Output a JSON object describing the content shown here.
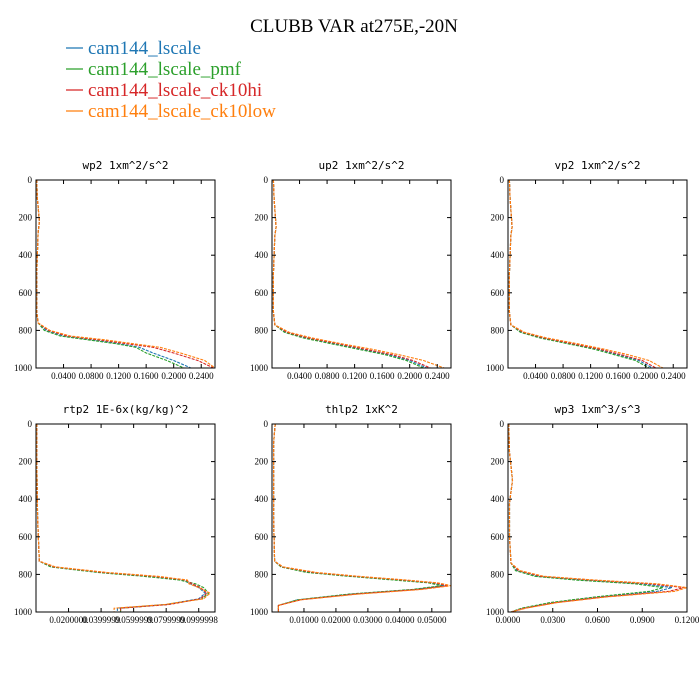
{
  "figure": {
    "title": "CLUBB VAR at275E,-20N"
  },
  "legend": [
    {
      "name": "cam144_lscale",
      "color": "#1f77b4"
    },
    {
      "name": "cam144_lscale_pmf",
      "color": "#2ca02c"
    },
    {
      "name": "cam144_lscale_ck10hi",
      "color": "#d62728"
    },
    {
      "name": "cam144_lscale_ck10low",
      "color": "#ff7f0e"
    }
  ],
  "chart_data": [
    {
      "type": "line",
      "title": "wp2  1xm^2/s^2",
      "xlim": [
        0,
        0.26
      ],
      "ylim": [
        1000,
        0
      ],
      "x_ticks": [
        0.04,
        0.08,
        0.12,
        0.16,
        0.2,
        0.24
      ],
      "x_tick_labels": [
        "0.0400",
        "0.0800",
        "0.1200",
        "0.1600",
        "0.2000",
        "0.2400"
      ],
      "y_ticks": [
        0,
        200,
        400,
        600,
        800,
        1000
      ],
      "y_tick_labels": [
        "0",
        "200",
        "400",
        "600",
        "800",
        "1000"
      ],
      "series": [
        {
          "name": "cam144_lscale",
          "x": [
            0.001,
            0.002,
            0.005,
            0.003,
            0.001,
            0.001,
            0.003,
            0.015,
            0.04,
            0.08,
            0.12,
            0.15,
            0.17,
            0.2,
            0.225
          ],
          "y": [
            0,
            100,
            220,
            280,
            500,
            700,
            760,
            800,
            830,
            850,
            870,
            890,
            920,
            960,
            1000
          ]
        },
        {
          "name": "cam144_lscale_pmf",
          "x": [
            0.001,
            0.002,
            0.005,
            0.003,
            0.001,
            0.001,
            0.003,
            0.012,
            0.035,
            0.075,
            0.115,
            0.145,
            0.16,
            0.19,
            0.215
          ],
          "y": [
            0,
            100,
            220,
            280,
            500,
            700,
            760,
            800,
            830,
            850,
            870,
            890,
            920,
            960,
            1000
          ]
        },
        {
          "name": "cam144_lscale_ck10hi",
          "x": [
            0.001,
            0.002,
            0.005,
            0.003,
            0.001,
            0.001,
            0.003,
            0.018,
            0.045,
            0.09,
            0.13,
            0.17,
            0.2,
            0.235,
            0.258
          ],
          "y": [
            0,
            100,
            220,
            280,
            500,
            700,
            760,
            800,
            830,
            850,
            870,
            890,
            920,
            960,
            1000
          ]
        },
        {
          "name": "cam144_lscale_ck10low",
          "x": [
            0.001,
            0.002,
            0.005,
            0.003,
            0.001,
            0.001,
            0.003,
            0.02,
            0.05,
            0.1,
            0.14,
            0.18,
            0.21,
            0.245,
            0.26
          ],
          "y": [
            0,
            100,
            220,
            280,
            500,
            700,
            760,
            800,
            830,
            850,
            870,
            890,
            920,
            960,
            1000
          ]
        }
      ]
    },
    {
      "type": "line",
      "title": "up2  1xm^2/s^2",
      "xlim": [
        0,
        0.26
      ],
      "ylim": [
        1000,
        0
      ],
      "x_ticks": [
        0.04,
        0.08,
        0.12,
        0.16,
        0.2,
        0.24
      ],
      "x_tick_labels": [
        "0.0400",
        "0.0800",
        "0.1200",
        "0.1600",
        "0.2000",
        "0.2400"
      ],
      "y_ticks": [
        0,
        200,
        400,
        600,
        800,
        1000
      ],
      "y_tick_labels": [
        "0",
        "200",
        "400",
        "600",
        "800",
        "1000"
      ],
      "series": [
        {
          "name": "cam144_lscale",
          "x": [
            0.002,
            0.003,
            0.006,
            0.004,
            0.002,
            0.002,
            0.004,
            0.02,
            0.05,
            0.09,
            0.13,
            0.17,
            0.2,
            0.225
          ],
          "y": [
            0,
            100,
            250,
            300,
            500,
            700,
            770,
            810,
            840,
            870,
            900,
            930,
            960,
            1000
          ]
        },
        {
          "name": "cam144_lscale_pmf",
          "x": [
            0.002,
            0.003,
            0.006,
            0.004,
            0.002,
            0.002,
            0.004,
            0.018,
            0.045,
            0.085,
            0.125,
            0.165,
            0.195,
            0.22
          ],
          "y": [
            0,
            100,
            250,
            300,
            500,
            700,
            770,
            810,
            840,
            870,
            900,
            930,
            960,
            1000
          ]
        },
        {
          "name": "cam144_lscale_ck10hi",
          "x": [
            0.002,
            0.003,
            0.006,
            0.004,
            0.002,
            0.002,
            0.004,
            0.022,
            0.052,
            0.095,
            0.135,
            0.175,
            0.205,
            0.23
          ],
          "y": [
            0,
            100,
            250,
            300,
            500,
            700,
            770,
            810,
            840,
            870,
            900,
            930,
            960,
            1000
          ]
        },
        {
          "name": "cam144_lscale_ck10low",
          "x": [
            0.002,
            0.003,
            0.006,
            0.004,
            0.002,
            0.002,
            0.004,
            0.025,
            0.058,
            0.1,
            0.145,
            0.185,
            0.22,
            0.25
          ],
          "y": [
            0,
            100,
            250,
            300,
            500,
            700,
            770,
            810,
            840,
            870,
            900,
            930,
            960,
            1000
          ]
        }
      ]
    },
    {
      "type": "line",
      "title": "vp2  1xm^2/s^2",
      "xlim": [
        0,
        0.26
      ],
      "ylim": [
        1000,
        0
      ],
      "x_ticks": [
        0.04,
        0.08,
        0.12,
        0.16,
        0.2,
        0.24
      ],
      "x_tick_labels": [
        "0.0400",
        "0.0800",
        "0.1200",
        "0.1600",
        "0.2000",
        "0.2400"
      ],
      "y_ticks": [
        0,
        200,
        400,
        600,
        800,
        1000
      ],
      "y_tick_labels": [
        "0",
        "200",
        "400",
        "600",
        "800",
        "1000"
      ],
      "series": [
        {
          "name": "cam144_lscale",
          "x": [
            0.002,
            0.003,
            0.006,
            0.004,
            0.002,
            0.002,
            0.004,
            0.02,
            0.05,
            0.09,
            0.13,
            0.16,
            0.19,
            0.21
          ],
          "y": [
            0,
            100,
            250,
            300,
            500,
            700,
            770,
            810,
            840,
            870,
            900,
            930,
            960,
            1000
          ]
        },
        {
          "name": "cam144_lscale_pmf",
          "x": [
            0.002,
            0.003,
            0.006,
            0.004,
            0.002,
            0.002,
            0.004,
            0.018,
            0.046,
            0.086,
            0.125,
            0.155,
            0.185,
            0.205
          ],
          "y": [
            0,
            100,
            250,
            300,
            500,
            700,
            770,
            810,
            840,
            870,
            900,
            930,
            960,
            1000
          ]
        },
        {
          "name": "cam144_lscale_ck10hi",
          "x": [
            0.002,
            0.003,
            0.006,
            0.004,
            0.002,
            0.002,
            0.004,
            0.022,
            0.052,
            0.093,
            0.133,
            0.165,
            0.195,
            0.215
          ],
          "y": [
            0,
            100,
            250,
            300,
            500,
            700,
            770,
            810,
            840,
            870,
            900,
            930,
            960,
            1000
          ]
        },
        {
          "name": "cam144_lscale_ck10low",
          "x": [
            0.002,
            0.003,
            0.006,
            0.004,
            0.002,
            0.002,
            0.004,
            0.024,
            0.056,
            0.1,
            0.14,
            0.175,
            0.205,
            0.225
          ],
          "y": [
            0,
            100,
            250,
            300,
            500,
            700,
            770,
            810,
            840,
            870,
            900,
            930,
            960,
            1000
          ]
        }
      ]
    },
    {
      "type": "line",
      "title": "rtp2  1E-6x(kg/kg)^2",
      "xlim": [
        0,
        0.11
      ],
      "ylim": [
        1000,
        0
      ],
      "x_ticks": [
        0.02,
        0.04,
        0.06,
        0.08,
        0.1
      ],
      "x_tick_labels": [
        "0.0200000",
        "0.0399999",
        "0.0599999",
        "0.0799999",
        "0.0999998"
      ],
      "y_ticks": [
        0,
        200,
        400,
        600,
        800,
        1000
      ],
      "y_tick_labels": [
        "0",
        "200",
        "400",
        "600",
        "800",
        "1000"
      ],
      "series": [
        {
          "name": "cam144_lscale",
          "x": [
            0.0005,
            0.0005,
            0.001,
            0.002,
            0.01,
            0.04,
            0.07,
            0.09,
            0.095,
            0.1,
            0.104,
            0.1,
            0.08,
            0.05,
            0.05
          ],
          "y": [
            0,
            200,
            500,
            730,
            760,
            790,
            810,
            830,
            850,
            870,
            900,
            930,
            960,
            980,
            1000
          ]
        },
        {
          "name": "cam144_lscale_pmf",
          "x": [
            0.0005,
            0.0005,
            0.001,
            0.002,
            0.009,
            0.038,
            0.066,
            0.088,
            0.098,
            0.103,
            0.106,
            0.102,
            0.08,
            0.052,
            0.052
          ],
          "y": [
            0,
            200,
            500,
            730,
            760,
            790,
            810,
            830,
            850,
            870,
            900,
            930,
            960,
            980,
            1000
          ]
        },
        {
          "name": "cam144_lscale_ck10hi",
          "x": [
            0.0005,
            0.0005,
            0.001,
            0.002,
            0.011,
            0.042,
            0.072,
            0.092,
            0.096,
            0.101,
            0.105,
            0.101,
            0.082,
            0.052,
            0.052
          ],
          "y": [
            0,
            200,
            500,
            730,
            760,
            790,
            810,
            830,
            850,
            870,
            900,
            930,
            960,
            980,
            1000
          ]
        },
        {
          "name": "cam144_lscale_ck10low",
          "x": [
            0.0005,
            0.0005,
            0.001,
            0.002,
            0.012,
            0.044,
            0.075,
            0.093,
            0.094,
            0.1,
            0.107,
            0.103,
            0.079,
            0.048,
            0.048
          ],
          "y": [
            0,
            200,
            500,
            730,
            760,
            790,
            810,
            830,
            850,
            870,
            900,
            930,
            960,
            980,
            1000
          ]
        }
      ]
    },
    {
      "type": "line",
      "title": "thlp2  1xK^2",
      "xlim": [
        0,
        0.056
      ],
      "ylim": [
        1000,
        0
      ],
      "x_ticks": [
        0.01,
        0.02,
        0.03,
        0.04,
        0.05
      ],
      "x_tick_labels": [
        "0.01000",
        "0.02000",
        "0.03000",
        "0.04000",
        "0.05000"
      ],
      "y_ticks": [
        0,
        200,
        400,
        600,
        800,
        1000
      ],
      "y_tick_labels": [
        "0",
        "200",
        "400",
        "600",
        "800",
        "1000"
      ],
      "series": [
        {
          "name": "cam144_lscale",
          "x": [
            0.001,
            0.0005,
            0.0005,
            0.0008,
            0.003,
            0.012,
            0.025,
            0.04,
            0.05,
            0.054,
            0.045,
            0.025,
            0.008,
            0.002,
            0.002
          ],
          "y": [
            0,
            100,
            500,
            730,
            760,
            790,
            810,
            830,
            845,
            860,
            880,
            905,
            935,
            965,
            1000
          ]
        },
        {
          "name": "cam144_lscale_pmf",
          "x": [
            0.001,
            0.0005,
            0.0005,
            0.0008,
            0.0028,
            0.011,
            0.024,
            0.038,
            0.049,
            0.053,
            0.044,
            0.024,
            0.008,
            0.002,
            0.002
          ],
          "y": [
            0,
            100,
            500,
            730,
            760,
            790,
            810,
            830,
            845,
            860,
            880,
            905,
            935,
            965,
            1000
          ]
        },
        {
          "name": "cam144_lscale_ck10hi",
          "x": [
            0.001,
            0.0005,
            0.0005,
            0.0008,
            0.0032,
            0.013,
            0.026,
            0.041,
            0.051,
            0.055,
            0.046,
            0.026,
            0.009,
            0.002,
            0.002
          ],
          "y": [
            0,
            100,
            500,
            730,
            760,
            790,
            810,
            830,
            845,
            860,
            880,
            905,
            935,
            965,
            1000
          ]
        },
        {
          "name": "cam144_lscale_ck10low",
          "x": [
            0.001,
            0.0005,
            0.0005,
            0.0008,
            0.0035,
            0.014,
            0.027,
            0.042,
            0.052,
            0.056,
            0.047,
            0.027,
            0.009,
            0.002,
            0.002
          ],
          "y": [
            0,
            100,
            500,
            730,
            760,
            790,
            810,
            830,
            845,
            860,
            880,
            905,
            935,
            965,
            1000
          ]
        }
      ]
    },
    {
      "type": "line",
      "title": "wp3  1xm^3/s^3",
      "xlim": [
        0,
        0.12
      ],
      "ylim": [
        1000,
        0
      ],
      "x_ticks": [
        0,
        0.03,
        0.06,
        0.09,
        0.12
      ],
      "x_tick_labels": [
        "0.0000",
        "0.0300",
        "0.0600",
        "0.0900",
        "0.1200"
      ],
      "y_ticks": [
        0,
        200,
        400,
        600,
        800,
        1000
      ],
      "y_tick_labels": [
        "0",
        "200",
        "400",
        "600",
        "800",
        "1000"
      ],
      "series": [
        {
          "name": "cam144_lscale",
          "x": [
            0.0005,
            0.001,
            0.003,
            0.001,
            0.001,
            0.002,
            0.006,
            0.02,
            0.05,
            0.09,
            0.11,
            0.1,
            0.06,
            0.03,
            0.01,
            0.002
          ],
          "y": [
            0,
            150,
            300,
            420,
            600,
            740,
            780,
            810,
            830,
            850,
            870,
            890,
            920,
            950,
            980,
            1000
          ]
        },
        {
          "name": "cam144_lscale_pmf",
          "x": [
            0.0005,
            0.001,
            0.003,
            0.001,
            0.001,
            0.002,
            0.005,
            0.018,
            0.045,
            0.085,
            0.104,
            0.095,
            0.058,
            0.028,
            0.009,
            0.002
          ],
          "y": [
            0,
            150,
            300,
            420,
            600,
            740,
            780,
            810,
            830,
            850,
            870,
            890,
            920,
            950,
            980,
            1000
          ]
        },
        {
          "name": "cam144_lscale_ck10hi",
          "x": [
            0.0005,
            0.001,
            0.003,
            0.001,
            0.001,
            0.002,
            0.007,
            0.022,
            0.055,
            0.095,
            0.118,
            0.108,
            0.064,
            0.032,
            0.011,
            0.002
          ],
          "y": [
            0,
            150,
            300,
            420,
            600,
            740,
            780,
            810,
            830,
            850,
            870,
            890,
            920,
            950,
            980,
            1000
          ]
        },
        {
          "name": "cam144_lscale_ck10low",
          "x": [
            0.0005,
            0.001,
            0.003,
            0.001,
            0.001,
            0.002,
            0.008,
            0.024,
            0.058,
            0.1,
            0.12,
            0.112,
            0.066,
            0.033,
            0.012,
            0.002
          ],
          "y": [
            0,
            150,
            300,
            420,
            600,
            740,
            780,
            810,
            830,
            850,
            870,
            890,
            920,
            950,
            980,
            1000
          ]
        }
      ]
    }
  ]
}
